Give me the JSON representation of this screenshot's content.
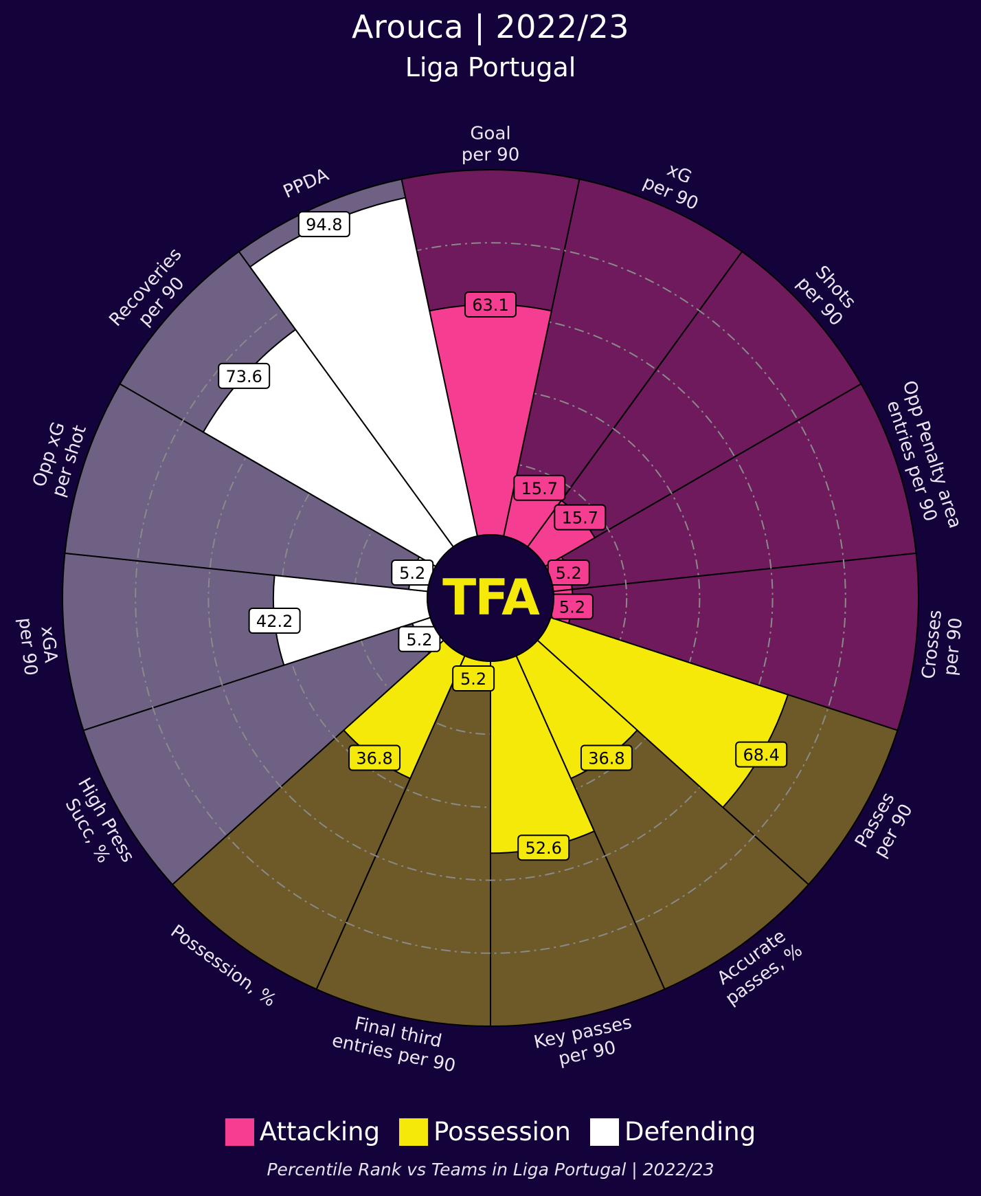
{
  "title": "Arouca | 2022/23",
  "subtitle": "Liga Portugal",
  "footnote": "Percentile Rank vs Teams in Liga Portugal | 2022/23",
  "logo_text": "TFA",
  "colors": {
    "background": "#14033a",
    "attacking": "#f53d91",
    "attacking_bg": "#6e1a5c",
    "possession": "#f5e90a",
    "possession_bg": "#6e5a28",
    "defending": "#ffffff",
    "defending_bg": "#6e6184",
    "logo": "#f5e90a",
    "grid": "#8a8a8a"
  },
  "legend": [
    {
      "label": "Attacking",
      "color": "#f53d91"
    },
    {
      "label": "Possession",
      "color": "#f5e90a"
    },
    {
      "label": "Defending",
      "color": "#ffffff"
    }
  ],
  "chart_data": {
    "type": "radar",
    "value_range": [
      0,
      100
    ],
    "grid_rings": [
      20,
      40,
      60,
      80
    ],
    "parameters": [
      {
        "label": "Goal\nper 90",
        "group": "Attacking",
        "value": 63.1
      },
      {
        "label": "xG\nper 90",
        "group": "Attacking",
        "value": 15.7
      },
      {
        "label": "Shots\nper 90",
        "group": "Attacking",
        "value": 15.7
      },
      {
        "label": "Opp Penalty area\nentries per 90",
        "group": "Attacking",
        "value": 5.2
      },
      {
        "label": "Crosses\nper 90",
        "group": "Attacking",
        "value": 5.2
      },
      {
        "label": "Passes\nper 90",
        "group": "Possession",
        "value": 68.4
      },
      {
        "label": "Accurate\npasses, %",
        "group": "Possession",
        "value": 36.8
      },
      {
        "label": "Key passes\nper 90",
        "group": "Possession",
        "value": 52.6
      },
      {
        "label": "Final third\nentries per 90",
        "group": "Possession",
        "value": 5.2
      },
      {
        "label": "Possession, %",
        "group": "Possession",
        "value": 36.8
      },
      {
        "label": "High Press\nSucc, %",
        "group": "Defending",
        "value": 5.2
      },
      {
        "label": "xGA\nper 90",
        "group": "Defending",
        "value": 42.2
      },
      {
        "label": "Opp xG\nper shot",
        "group": "Defending",
        "value": 5.2
      },
      {
        "label": "Recoveries\nper 90",
        "group": "Defending",
        "value": 73.6
      },
      {
        "label": "PPDA",
        "group": "Defending",
        "value": 94.8
      }
    ]
  }
}
